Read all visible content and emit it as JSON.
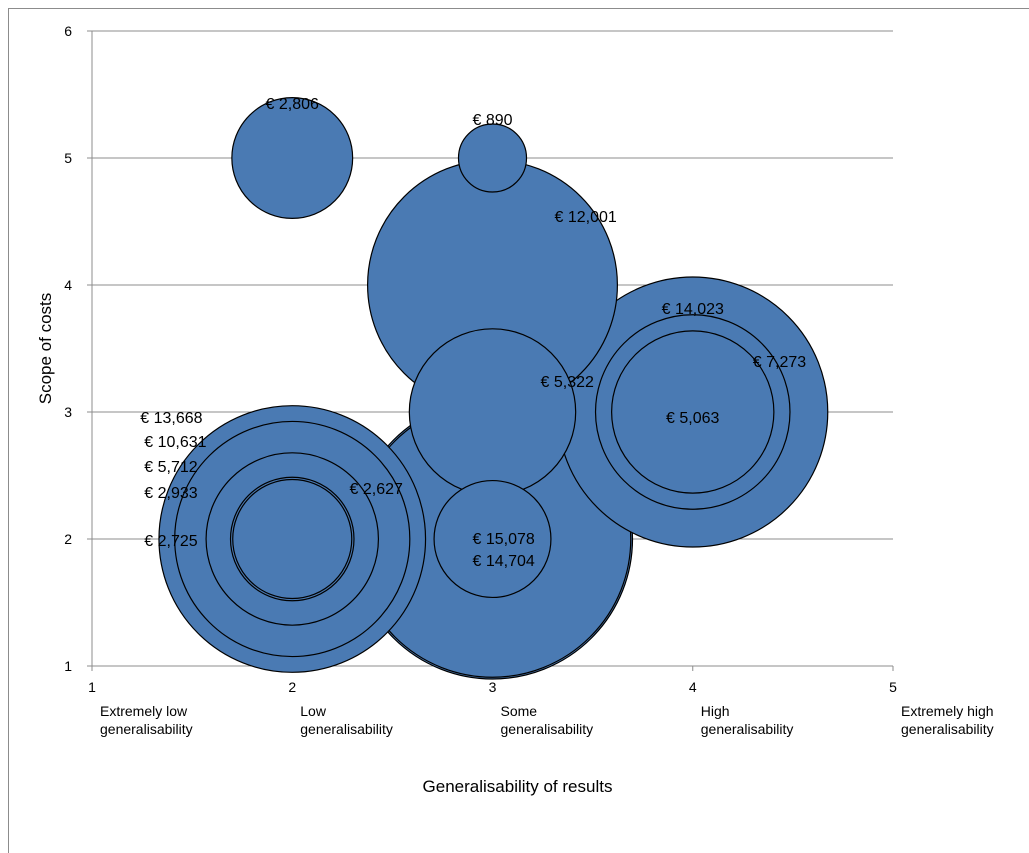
{
  "chart_data": {
    "type": "bubble",
    "title": "",
    "xlabel": "Generalisability of results",
    "ylabel": "Scope of costs",
    "xlim": [
      1,
      5
    ],
    "ylim": [
      1,
      6
    ],
    "x_ticks": [
      "1",
      "2",
      "3",
      "4",
      "5"
    ],
    "y_ticks": [
      "1",
      "2",
      "3",
      "4",
      "5",
      "6"
    ],
    "x_categories": [
      "Extremely low\ngeneralisability",
      "Low\ngeneralisability",
      "Some\ngeneralisability",
      "High\ngeneralisability",
      "Extremely high\ngeneralisability"
    ],
    "grid": "horizontal",
    "colors": {
      "bubble_fill": "#4a7ab3",
      "bubble_edge": "#000000",
      "grid": "#8c8c8c"
    },
    "points": [
      {
        "x": 2,
        "y": 5,
        "value": 2806,
        "label": "€ 2,806"
      },
      {
        "x": 3,
        "y": 5,
        "value": 890,
        "label": "€ 890"
      },
      {
        "x": 3,
        "y": 4,
        "value": 12001,
        "label": "€ 12,001"
      },
      {
        "x": 4,
        "y": 3,
        "value": 14023,
        "label": "€ 14,023"
      },
      {
        "x": 4,
        "y": 3,
        "value": 7273,
        "label": "€ 7,273"
      },
      {
        "x": 4,
        "y": 3,
        "value": 5063,
        "label": "€ 5,063"
      },
      {
        "x": 3,
        "y": 3,
        "value": 5322,
        "label": "€ 5,322"
      },
      {
        "x": 3,
        "y": 2,
        "value": 15078,
        "label": "€ 15,078"
      },
      {
        "x": 3,
        "y": 2,
        "value": 14704,
        "label": "€ 14,704"
      },
      {
        "x": 3,
        "y": 2,
        "value": 2627,
        "label": "€ 2,627"
      },
      {
        "x": 2,
        "y": 2,
        "value": 13668,
        "label": "€ 13,668"
      },
      {
        "x": 2,
        "y": 2,
        "value": 10631,
        "label": "€ 10,631"
      },
      {
        "x": 2,
        "y": 2,
        "value": 5712,
        "label": "€ 5,712"
      },
      {
        "x": 2,
        "y": 2,
        "value": 2933,
        "label": "€ 2,933"
      },
      {
        "x": 2,
        "y": 2,
        "value": 2725,
        "label": "€ 2,725"
      }
    ]
  }
}
